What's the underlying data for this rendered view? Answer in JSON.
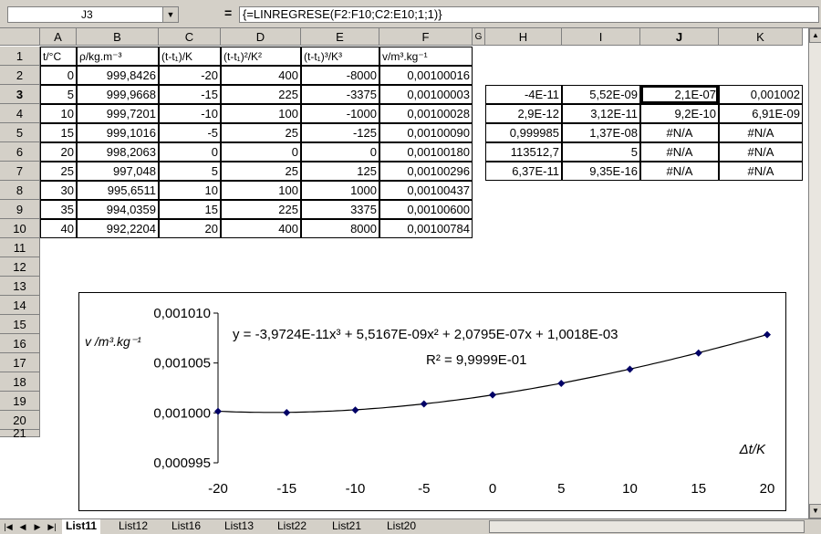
{
  "formula_bar": {
    "name_box": "J3",
    "equals_sign": "=",
    "formula": "{=LINREGRESE(F2:F10;C2:E10;1;1)}"
  },
  "columns": [
    "A",
    "B",
    "C",
    "D",
    "E",
    "F",
    "G",
    "H",
    "I",
    "J",
    "K"
  ],
  "rows": [
    "1",
    "2",
    "3",
    "4",
    "5",
    "6",
    "7",
    "8",
    "9",
    "10",
    "11",
    "12",
    "13",
    "14",
    "15",
    "16",
    "17",
    "18",
    "19",
    "20",
    "21"
  ],
  "headers": {
    "A": "t/°C",
    "B": "ρ/kg.m⁻³",
    "C": "(t-t₁)/K",
    "D": "(t-t₁)²/K²",
    "E": "(t-t₁)³/K³",
    "F": "v/m³.kg⁻¹"
  },
  "table": [
    [
      "0",
      "999,8426",
      "-20",
      "400",
      "-8000",
      "0,00100016"
    ],
    [
      "5",
      "999,9668",
      "-15",
      "225",
      "-3375",
      "0,00100003"
    ],
    [
      "10",
      "999,7201",
      "-10",
      "100",
      "-1000",
      "0,00100028"
    ],
    [
      "15",
      "999,1016",
      "-5",
      "25",
      "-125",
      "0,00100090"
    ],
    [
      "20",
      "998,2063",
      "0",
      "0",
      "0",
      "0,00100180"
    ],
    [
      "25",
      "997,048",
      "5",
      "25",
      "125",
      "0,00100296"
    ],
    [
      "30",
      "995,6511",
      "10",
      "100",
      "1000",
      "0,00100437"
    ],
    [
      "35",
      "994,0359",
      "15",
      "225",
      "3375",
      "0,00100600"
    ],
    [
      "40",
      "992,2204",
      "20",
      "400",
      "8000",
      "0,00100784"
    ]
  ],
  "regression": [
    [
      "-4E-11",
      "5,52E-09",
      "2,1E-07",
      "0,001002"
    ],
    [
      "2,9E-12",
      "3,12E-11",
      "9,2E-10",
      "6,91E-09"
    ],
    [
      "0,999985",
      "1,37E-08",
      "#N/A",
      "#N/A"
    ],
    [
      "113512,7",
      "5",
      "#N/A",
      "#N/A"
    ],
    [
      "6,37E-11",
      "9,35E-16",
      "#N/A",
      "#N/A"
    ]
  ],
  "chart_data": {
    "type": "scatter",
    "x": [
      -20,
      -15,
      -10,
      -5,
      0,
      5,
      10,
      15,
      20
    ],
    "y": [
      0.00100016,
      0.00100003,
      0.00100028,
      0.0010009,
      0.0010018,
      0.00100296,
      0.00100437,
      0.001006,
      0.00100784
    ],
    "xlim": [
      -20,
      20
    ],
    "ylim": [
      0.000995,
      0.00101
    ],
    "x_ticks": [
      "-20",
      "-15",
      "-10",
      "-5",
      "0",
      "5",
      "10",
      "15",
      "20"
    ],
    "y_ticks": [
      "0,001010",
      "0,001005",
      "0,001000",
      "0,000995"
    ],
    "y_tick_values": [
      0.00101,
      0.001005,
      0.001,
      0.000995
    ],
    "ylabel": "v /m³.kg⁻¹",
    "xlabel": "Δt/K",
    "equation": "y = -3,9724E-11x³ + 5,5167E-09x² + 2,0795E-07x + 1,0018E-03",
    "r_squared": "R² = 9,9999E-01",
    "trendline": {
      "a3": -3.9724e-11,
      "a2": 5.5167e-09,
      "a1": 2.0795e-07,
      "a0": 0.0010018
    },
    "marker_color": "#000066"
  },
  "sheet_tabs": [
    "List11",
    "List12",
    "List16",
    "List13",
    "List22",
    "List21",
    "List20"
  ],
  "active_tab": "List11"
}
